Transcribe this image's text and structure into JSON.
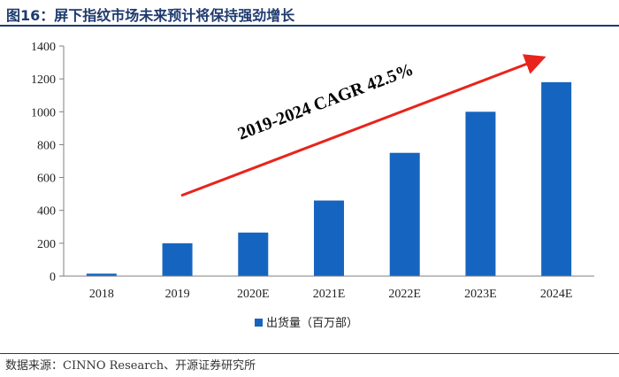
{
  "figure": {
    "title": "图16：屏下指纹市场未来预计将保持强劲增长",
    "source": "数据来源：CINNO Research、开源证券研究所"
  },
  "chart_data": {
    "type": "bar",
    "categories": [
      "2018",
      "2019",
      "2020E",
      "2021E",
      "2022E",
      "2023E",
      "2024E"
    ],
    "series": [
      {
        "name": "出货量（百万部）",
        "values": [
          15,
          200,
          265,
          460,
          750,
          1000,
          1180
        ]
      }
    ],
    "ylim": [
      0,
      1400
    ],
    "yticks": [
      0,
      200,
      400,
      600,
      800,
      1000,
      1200,
      1400
    ],
    "annotation": "2019-2024 CAGR 42.5%",
    "bar_color": "#1565c0",
    "arrow_color": "#e8241c",
    "legend_position": "bottom"
  }
}
